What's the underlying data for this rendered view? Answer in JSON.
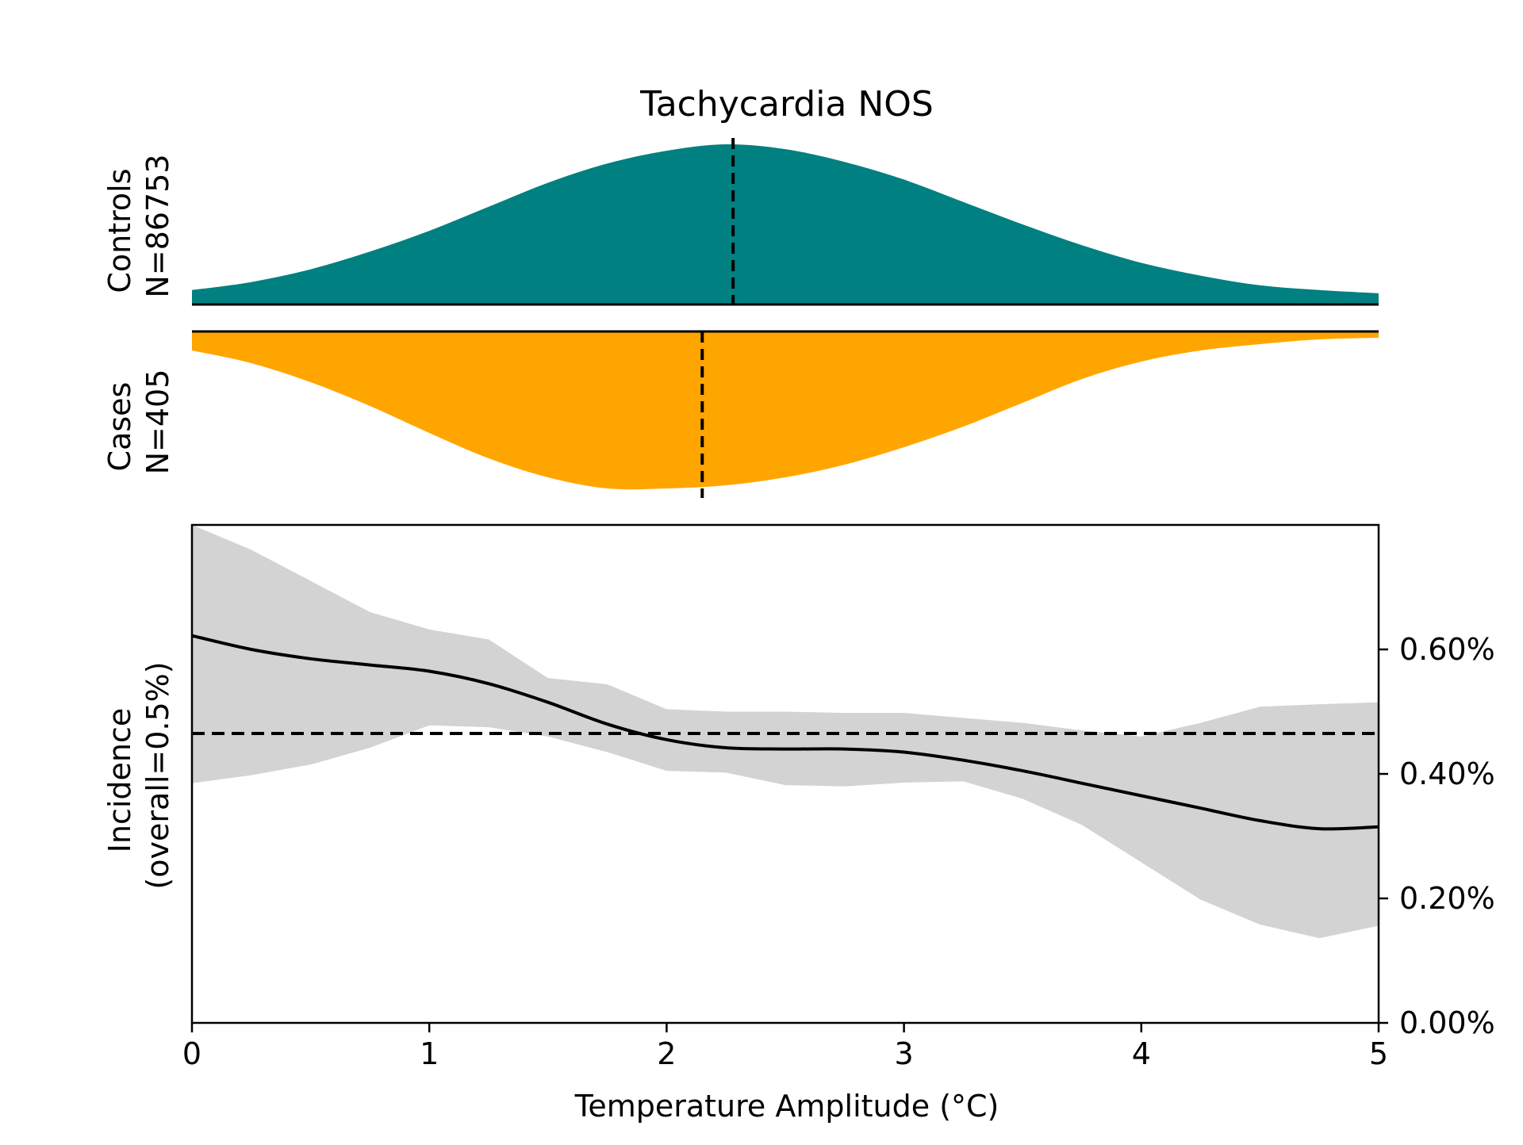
{
  "chart_data": {
    "type": "area",
    "title": "Tachycardia NOS",
    "xlabel": "Temperature Amplitude (°C)",
    "xlim": [
      0,
      5
    ],
    "x_ticks": [
      0,
      1,
      2,
      3,
      4,
      5
    ],
    "x_tick_labels": [
      "0",
      "1",
      "2",
      "3",
      "4",
      "5"
    ],
    "grid": false,
    "colors": {
      "controls": "#008080",
      "cases": "#FFA500",
      "ci_band": "#D3D3D3",
      "line": "#000000"
    },
    "density_panels": [
      {
        "name": "Controls",
        "label_line1": "Controls",
        "label_line2": "N=86753",
        "direction": "up",
        "median": 2.28,
        "x": [
          0,
          0.25,
          0.5,
          0.75,
          1.0,
          1.25,
          1.5,
          1.75,
          2.0,
          2.25,
          2.5,
          2.75,
          3.0,
          3.25,
          3.5,
          3.75,
          4.0,
          4.25,
          4.5,
          4.75,
          5.0
        ],
        "density": [
          0.09,
          0.14,
          0.22,
          0.33,
          0.46,
          0.61,
          0.76,
          0.88,
          0.96,
          1.0,
          0.97,
          0.89,
          0.78,
          0.64,
          0.5,
          0.37,
          0.26,
          0.18,
          0.12,
          0.09,
          0.07
        ]
      },
      {
        "name": "Cases",
        "label_line1": "Cases",
        "label_line2": "N=405",
        "direction": "down",
        "median": 2.15,
        "x": [
          0,
          0.25,
          0.5,
          0.75,
          1.0,
          1.25,
          1.5,
          1.75,
          2.0,
          2.25,
          2.5,
          2.75,
          3.0,
          3.25,
          3.5,
          3.75,
          4.0,
          4.25,
          4.5,
          4.75,
          5.0
        ],
        "density": [
          0.12,
          0.2,
          0.32,
          0.47,
          0.64,
          0.8,
          0.92,
          0.99,
          0.99,
          0.97,
          0.92,
          0.84,
          0.73,
          0.6,
          0.45,
          0.3,
          0.19,
          0.12,
          0.08,
          0.05,
          0.04
        ]
      }
    ],
    "incidence": {
      "ylabel_line1": "Incidence",
      "ylabel_line2": "(overall=0.5%)",
      "ylim": [
        0,
        0.8
      ],
      "y_ticks": [
        0.0,
        0.2,
        0.4,
        0.6
      ],
      "y_tick_labels": [
        "0.00%",
        "0.20%",
        "0.40%",
        "0.60%"
      ],
      "overall": 0.465,
      "x": [
        0,
        0.25,
        0.5,
        0.75,
        1.0,
        1.25,
        1.5,
        1.75,
        2.0,
        2.25,
        2.5,
        2.75,
        3.0,
        3.25,
        3.5,
        3.75,
        4.0,
        4.25,
        4.5,
        4.75,
        5.0
      ],
      "estimate": [
        0.622,
        0.6,
        0.585,
        0.575,
        0.565,
        0.545,
        0.515,
        0.48,
        0.455,
        0.442,
        0.44,
        0.44,
        0.435,
        0.422,
        0.405,
        0.385,
        0.365,
        0.345,
        0.325,
        0.312,
        0.315
      ],
      "ci_lower": [
        0.385,
        0.398,
        0.415,
        0.442,
        0.478,
        0.475,
        0.46,
        0.435,
        0.405,
        0.402,
        0.382,
        0.38,
        0.386,
        0.388,
        0.36,
        0.318,
        0.258,
        0.198,
        0.158,
        0.136,
        0.156
      ],
      "ci_upper": [
        0.8,
        0.76,
        0.71,
        0.66,
        0.632,
        0.616,
        0.554,
        0.544,
        0.504,
        0.5,
        0.5,
        0.498,
        0.498,
        0.49,
        0.482,
        0.47,
        0.46,
        0.482,
        0.508,
        0.512,
        0.515
      ]
    }
  }
}
